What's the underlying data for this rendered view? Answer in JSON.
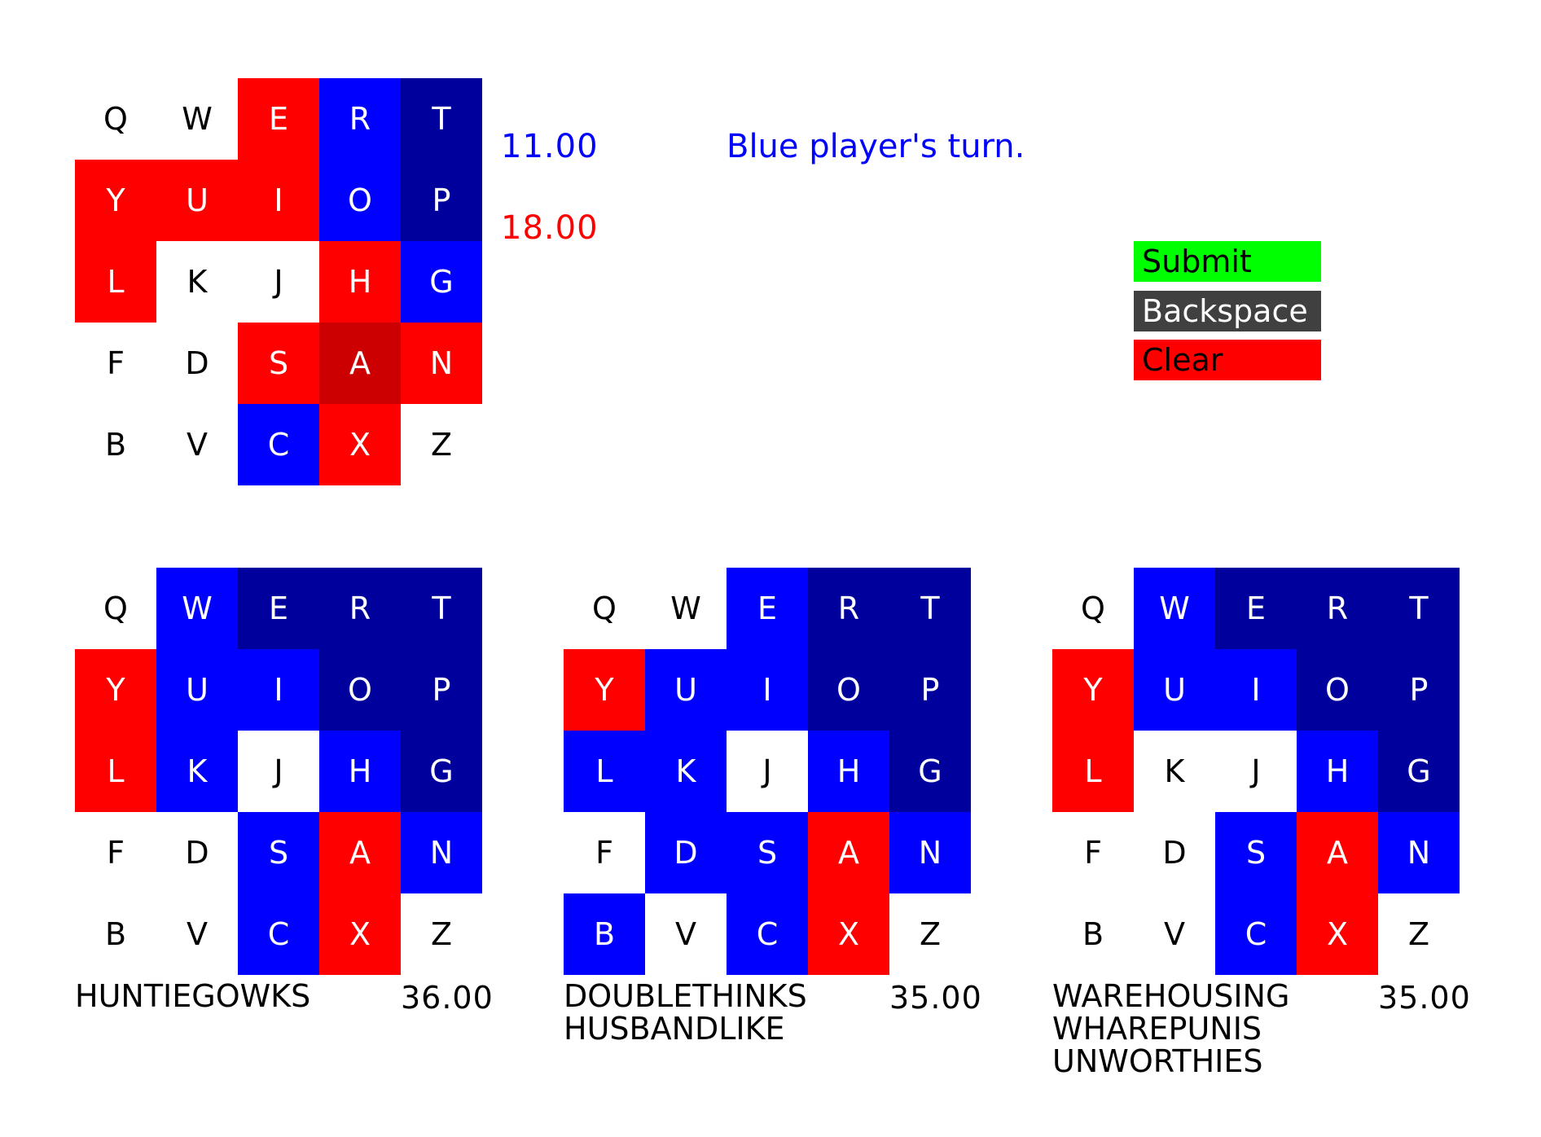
{
  "colors": {
    "w": "#ffffff",
    "r": "#ff0000",
    "R": "#cc0000",
    "b": "#0000ff",
    "B": "#00009c",
    "blue_text": "#0000ff",
    "red_text": "#ff0000"
  },
  "main_board": {
    "letters": [
      "Q",
      "W",
      "E",
      "R",
      "T",
      "Y",
      "U",
      "I",
      "O",
      "P",
      "L",
      "K",
      "J",
      "H",
      "G",
      "F",
      "D",
      "S",
      "A",
      "N",
      "B",
      "V",
      "C",
      "X",
      "Z"
    ],
    "colors": [
      "w",
      "w",
      "r",
      "b",
      "B",
      "r",
      "r",
      "r",
      "b",
      "B",
      "r",
      "w",
      "w",
      "r",
      "b",
      "w",
      "w",
      "r",
      "R",
      "r",
      "w",
      "w",
      "b",
      "r",
      "w"
    ]
  },
  "scores": {
    "blue": "11.00",
    "red": "18.00"
  },
  "status": "Blue player's turn.",
  "buttons": {
    "submit": "Submit",
    "backspace": "Backspace",
    "clear": "Clear"
  },
  "suggestions": [
    {
      "letters": [
        "Q",
        "W",
        "E",
        "R",
        "T",
        "Y",
        "U",
        "I",
        "O",
        "P",
        "L",
        "K",
        "J",
        "H",
        "G",
        "F",
        "D",
        "S",
        "A",
        "N",
        "B",
        "V",
        "C",
        "X",
        "Z"
      ],
      "colors": [
        "w",
        "b",
        "B",
        "B",
        "B",
        "r",
        "b",
        "b",
        "B",
        "B",
        "r",
        "b",
        "w",
        "b",
        "B",
        "w",
        "w",
        "b",
        "r",
        "b",
        "w",
        "w",
        "b",
        "r",
        "w"
      ],
      "words": [
        "HUNTIEGOWKS"
      ],
      "score": "36.00"
    },
    {
      "letters": [
        "Q",
        "W",
        "E",
        "R",
        "T",
        "Y",
        "U",
        "I",
        "O",
        "P",
        "L",
        "K",
        "J",
        "H",
        "G",
        "F",
        "D",
        "S",
        "A",
        "N",
        "B",
        "V",
        "C",
        "X",
        "Z"
      ],
      "colors": [
        "w",
        "w",
        "b",
        "B",
        "B",
        "r",
        "b",
        "b",
        "B",
        "B",
        "b",
        "b",
        "w",
        "b",
        "B",
        "w",
        "b",
        "b",
        "r",
        "b",
        "b",
        "w",
        "b",
        "r",
        "w"
      ],
      "words": [
        "DOUBLETHINKS",
        "HUSBANDLIKE"
      ],
      "score": "35.00"
    },
    {
      "letters": [
        "Q",
        "W",
        "E",
        "R",
        "T",
        "Y",
        "U",
        "I",
        "O",
        "P",
        "L",
        "K",
        "J",
        "H",
        "G",
        "F",
        "D",
        "S",
        "A",
        "N",
        "B",
        "V",
        "C",
        "X",
        "Z"
      ],
      "colors": [
        "w",
        "b",
        "B",
        "B",
        "B",
        "r",
        "b",
        "b",
        "B",
        "B",
        "r",
        "w",
        "w",
        "b",
        "B",
        "w",
        "w",
        "b",
        "r",
        "b",
        "w",
        "w",
        "b",
        "r",
        "w"
      ],
      "words": [
        "WAREHOUSING",
        "WHAREPUNIS",
        "UNWORTHIES"
      ],
      "score": "35.00"
    }
  ]
}
